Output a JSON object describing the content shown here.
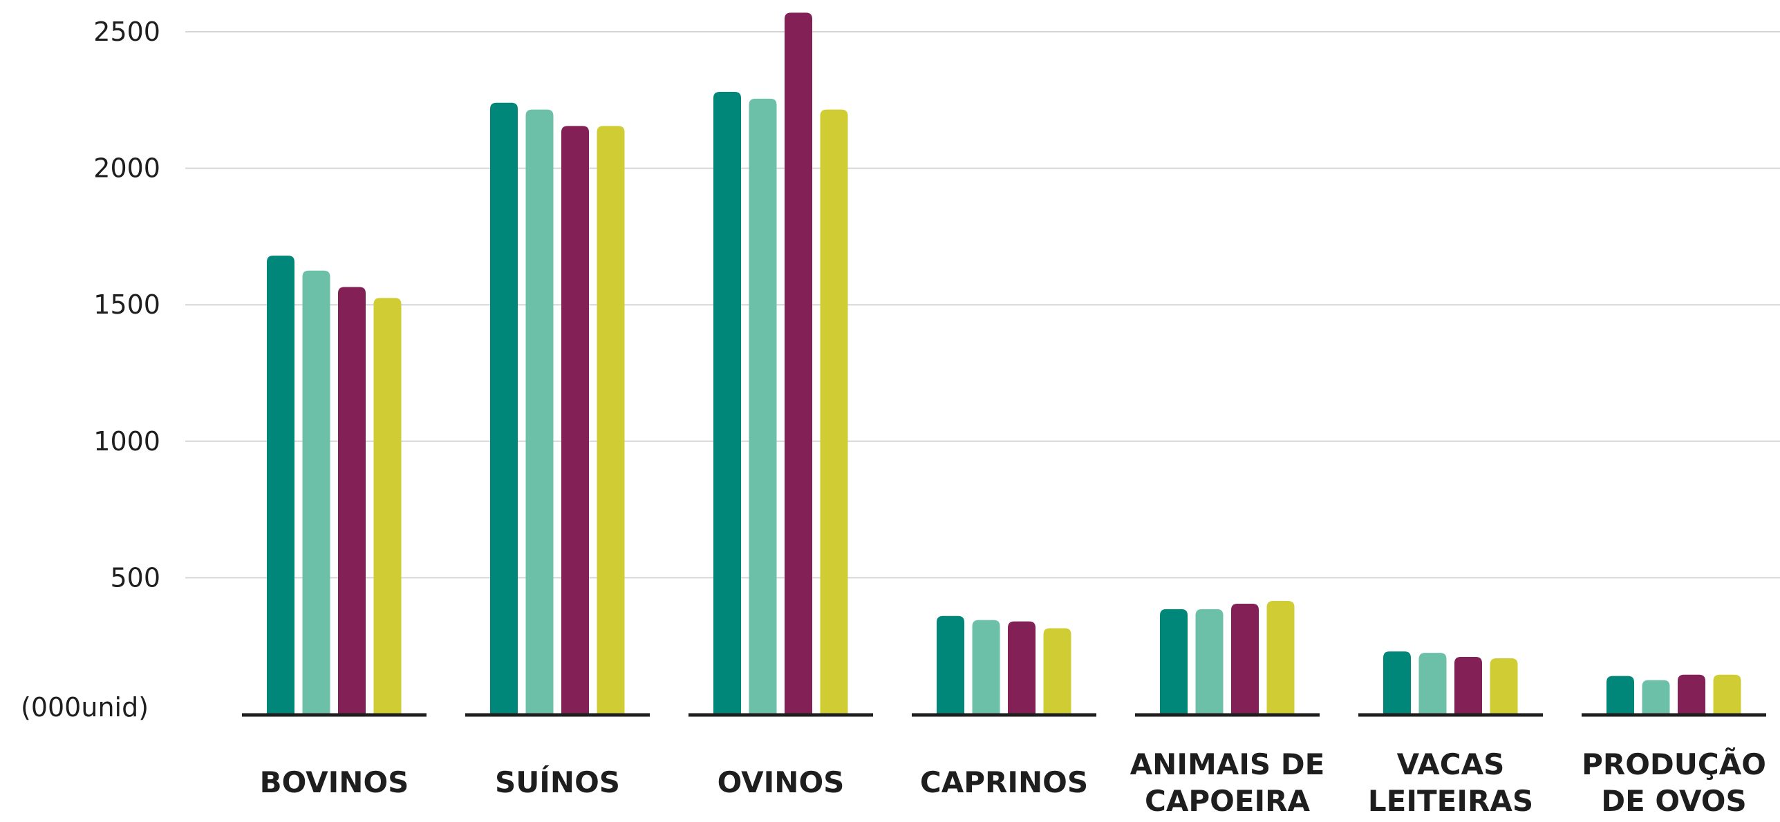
{
  "chart_data": {
    "type": "bar",
    "title": "",
    "xlabel": "",
    "ylabel": "(000unid)",
    "ylim": [
      0,
      2500
    ],
    "yticks": [
      500,
      1000,
      1500,
      2000,
      2500
    ],
    "grid": true,
    "categories": [
      "BOVINOS",
      "SUÍNOS",
      "OVINOS",
      "CAPRINOS",
      "ANIMAIS DE CAPOEIRA",
      "VACAS LEITEIRAS",
      "PRODUÇÃO DE OVOS"
    ],
    "category_lines": [
      [
        "BOVINOS"
      ],
      [
        "SUÍNOS"
      ],
      [
        "OVINOS"
      ],
      [
        "CAPRINOS"
      ],
      [
        "ANIMAIS DE",
        "CAPOEIRA"
      ],
      [
        "VACAS",
        "LEITEIRAS"
      ],
      [
        "PRODUÇÃO",
        "DE OVOS"
      ]
    ],
    "series": [
      {
        "color": "#00877a",
        "values": [
          1680,
          2240,
          2280,
          360,
          385,
          230,
          140
        ]
      },
      {
        "color": "#6cc0a8",
        "values": [
          1625,
          2215,
          2255,
          345,
          385,
          225,
          125
        ]
      },
      {
        "color": "#832156",
        "values": [
          1565,
          2155,
          2570,
          340,
          405,
          210,
          145
        ]
      },
      {
        "color": "#cfcd33",
        "values": [
          1525,
          2155,
          2215,
          315,
          415,
          205,
          145
        ]
      }
    ]
  }
}
